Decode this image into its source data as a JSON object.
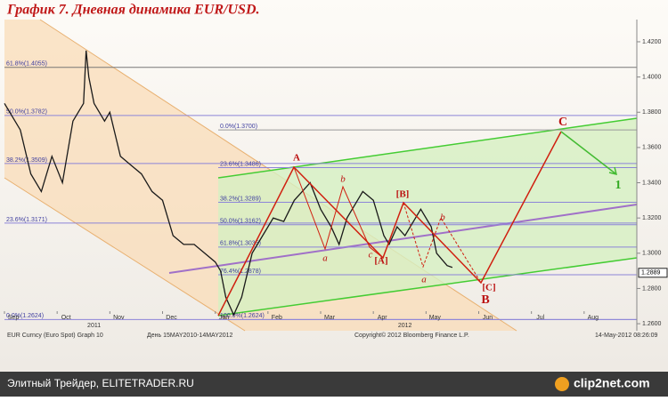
{
  "chart_data": {
    "type": "line",
    "title": "График 7.   Дневная динамика EUR/USD.",
    "x": [
      0.0,
      0.3,
      0.5,
      0.7,
      0.9,
      1.1,
      1.3,
      1.5,
      1.55,
      1.6,
      1.7,
      1.9,
      2.0,
      2.2,
      2.4,
      2.6,
      2.8,
      3.0,
      3.2,
      3.4,
      3.6,
      3.8,
      4.0,
      4.1,
      4.2,
      4.35,
      4.5,
      4.7,
      4.9,
      5.1,
      5.3,
      5.5,
      5.65,
      5.8,
      6.0,
      6.2,
      6.35,
      6.5,
      6.7,
      6.8,
      7.0,
      7.2,
      7.3,
      7.45,
      7.6,
      7.8,
      7.9,
      8.1,
      8.2,
      8.4,
      8.5
    ],
    "series": [
      {
        "color": "#1a1a1a",
        "values": [
          1.385,
          1.37,
          1.345,
          1.335,
          1.355,
          1.34,
          1.375,
          1.385,
          1.415,
          1.4,
          1.385,
          1.375,
          1.38,
          1.355,
          1.35,
          1.345,
          1.335,
          1.33,
          1.31,
          1.305,
          1.305,
          1.3,
          1.295,
          1.29,
          1.275,
          1.265,
          1.275,
          1.3,
          1.31,
          1.32,
          1.318,
          1.33,
          1.335,
          1.34,
          1.325,
          1.315,
          1.305,
          1.32,
          1.33,
          1.335,
          1.33,
          1.31,
          1.305,
          1.315,
          1.31,
          1.32,
          1.325,
          1.315,
          1.3,
          1.293,
          1.292
        ]
      }
    ],
    "xlim": [
      0,
      12
    ],
    "xticks": [
      {
        "value": 0,
        "label": "Sep"
      },
      {
        "value": 1,
        "label": "Oct"
      },
      {
        "value": 2,
        "label": "Nov"
      },
      {
        "value": 3,
        "label": "Dec"
      },
      {
        "value": 4,
        "label": "Jan"
      },
      {
        "value": 5,
        "label": "Feb"
      },
      {
        "value": 6,
        "label": "Mar"
      },
      {
        "value": 7,
        "label": "Apr"
      },
      {
        "value": 8,
        "label": "May"
      },
      {
        "value": 9,
        "label": "Jun"
      },
      {
        "value": 10,
        "label": "Jul"
      },
      {
        "value": 11,
        "label": "Aug"
      }
    ],
    "year_labels": [
      {
        "value": 1.7,
        "label": "2011"
      },
      {
        "value": 7.6,
        "label": "2012"
      }
    ],
    "ylim": [
      1.256,
      1.4326
    ],
    "yticks": [
      {
        "value": 1.26,
        "label": "1.2600"
      },
      {
        "value": 1.28,
        "label": "1.2800"
      },
      {
        "value": 1.3,
        "label": "1.3000"
      },
      {
        "value": 1.32,
        "label": "1.3200"
      },
      {
        "value": 1.34,
        "label": "1.3400"
      },
      {
        "value": 1.36,
        "label": "1.3600"
      },
      {
        "value": 1.38,
        "label": "1.3800"
      },
      {
        "value": 1.4,
        "label": "1.4000"
      },
      {
        "value": 1.42,
        "label": "1.4200"
      }
    ],
    "last_price": 1.2889,
    "fib_left": [
      {
        "value": 1.4055,
        "label": "61.8%(1.4055)"
      },
      {
        "value": 1.3782,
        "label": "50.0%(1.3782)"
      },
      {
        "value": 1.3509,
        "label": "38.2%(1.3509)"
      },
      {
        "value": 1.3171,
        "label": "23.6%(1.3171)"
      },
      {
        "value": 1.2624,
        "label": "0.0%(1.2624)"
      }
    ],
    "fib_right": [
      {
        "value": 1.37,
        "label": "0.0%(1.3700)"
      },
      {
        "value": 1.3486,
        "label": "23.6%(1.3486)"
      },
      {
        "value": 1.3289,
        "label": "38.2%(1.3289)"
      },
      {
        "value": 1.3162,
        "label": "50.0%(1.3162)"
      },
      {
        "value": 1.3035,
        "label": "61.8%(1.3035)"
      },
      {
        "value": 1.2878,
        "label": "76.4%(1.2878)"
      },
      {
        "value": 1.2624,
        "label": "100.0%(1.2624)"
      }
    ],
    "annotations": [
      "A",
      "b",
      "a",
      "c",
      "[A]",
      "[B]",
      "b",
      "a",
      "[C]",
      "B",
      "C",
      "1"
    ],
    "footer": [
      "EUR Curncy (Euro Spot) Graph 10",
      "День 15MAY2010-14MAY2012",
      "Copyright© 2012 Bloomberg Finance L.P.",
      "14-May-2012 08:26:09"
    ]
  },
  "banner": {
    "left": "Элитный Трейдер, ELITETRADER.RU",
    "right": "clip2net.com"
  }
}
